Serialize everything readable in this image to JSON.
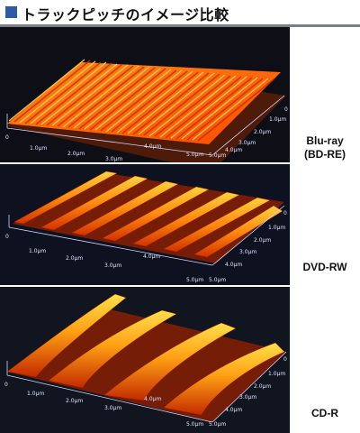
{
  "header": {
    "title": "トラックピッチのイメージ比較"
  },
  "panels": [
    {
      "label_line1": "Blu-ray",
      "label_line2": "(BD-RE)",
      "x_ticks": [
        "0",
        "1.0μm",
        "2.0μm",
        "3.0μm",
        "4.0μm",
        "5.0μm"
      ],
      "y_ticks": [
        "0",
        "1.0μm",
        "2.0μm",
        "3.0μm",
        "4.0μm",
        "5.0μm"
      ]
    },
    {
      "label_line1": "DVD-RW",
      "x_ticks": [
        "0",
        "1.0μm",
        "2.0μm",
        "3.0μm",
        "4.0μm",
        "5.0μm"
      ],
      "y_ticks": [
        "0",
        "1.0μm",
        "2.0μm",
        "3.0μm",
        "4.0μm",
        "5.0μm"
      ]
    },
    {
      "label_line1": "CD-R",
      "x_ticks": [
        "0",
        "1.0μm",
        "2.0μm",
        "3.0μm",
        "4.0μm",
        "5.0μm"
      ],
      "y_ticks": [
        "0",
        "1.0μm",
        "2.0μm",
        "3.0μm",
        "4.0μm",
        "5.0μm"
      ]
    }
  ]
}
